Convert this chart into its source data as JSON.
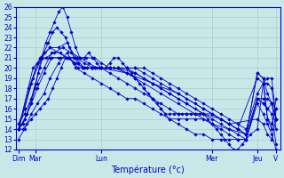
{
  "xlabel": "Température (°c)",
  "ylim": [
    12,
    26
  ],
  "yticks": [
    12,
    13,
    14,
    15,
    16,
    17,
    18,
    19,
    20,
    21,
    22,
    23,
    24,
    25,
    26
  ],
  "bg_color": "#c8e8e8",
  "grid_color": "#a0c8c8",
  "line_color": "#0000cc",
  "xlim": [
    0,
    310
  ],
  "day_tick_positions": [
    3,
    23,
    100,
    230,
    283,
    305
  ],
  "day_tick_labels": [
    "Dim",
    "Mar",
    "Lun",
    "Mer",
    "Jeu",
    "V"
  ],
  "series": [
    {
      "x": [
        3,
        8,
        13,
        18,
        22,
        26,
        30,
        35,
        40,
        45,
        50,
        55,
        60,
        65,
        70,
        75,
        80,
        85,
        90,
        95,
        100,
        105,
        110,
        115,
        120,
        125,
        130,
        135,
        140,
        145,
        150,
        155,
        160,
        165,
        170,
        175,
        180,
        185,
        190,
        195,
        200,
        205,
        210,
        215,
        220,
        225,
        230,
        235,
        240,
        245,
        250,
        255,
        260,
        265,
        270,
        275,
        283,
        290,
        295,
        300,
        305
      ],
      "y": [
        14.0,
        14.5,
        15.5,
        16.5,
        18.0,
        19.5,
        21.0,
        22.5,
        23.5,
        24.5,
        25.5,
        26.0,
        25.0,
        23.5,
        22.0,
        21.0,
        21.0,
        21.5,
        21.0,
        20.5,
        20.0,
        20.0,
        20.5,
        21.0,
        21.0,
        20.5,
        20.0,
        19.5,
        19.0,
        18.5,
        18.0,
        17.5,
        17.0,
        16.5,
        16.0,
        15.5,
        15.5,
        15.5,
        15.5,
        15.5,
        15.5,
        15.5,
        15.5,
        15.5,
        15.5,
        15.0,
        14.5,
        14.0,
        13.5,
        13.0,
        12.5,
        12.0,
        12.0,
        12.5,
        13.0,
        13.5,
        14.0,
        18.5,
        19.0,
        19.0,
        15.0
      ]
    },
    {
      "x": [
        3,
        10,
        18,
        25,
        35,
        45,
        55,
        65,
        75,
        85,
        95,
        100,
        110,
        120,
        130,
        140,
        150,
        160,
        170,
        180,
        190,
        200,
        210,
        220,
        230,
        240,
        250,
        260,
        270,
        283,
        290,
        295,
        300,
        305
      ],
      "y": [
        14.5,
        16.0,
        18.5,
        20.5,
        21.0,
        21.5,
        22.0,
        21.5,
        21.0,
        20.5,
        20.0,
        20.0,
        20.0,
        20.0,
        20.0,
        20.0,
        20.0,
        19.5,
        19.0,
        18.5,
        18.0,
        17.5,
        17.0,
        16.5,
        16.0,
        15.5,
        15.0,
        14.5,
        14.0,
        17.5,
        18.5,
        18.5,
        18.0,
        15.0
      ]
    },
    {
      "x": [
        3,
        8,
        13,
        18,
        23,
        28,
        33,
        38,
        43,
        48,
        53,
        58,
        63,
        68,
        73,
        78,
        83,
        88,
        93,
        98,
        100,
        110,
        120,
        130,
        140,
        150,
        160,
        170,
        180,
        190,
        200,
        210,
        220,
        230,
        240,
        250,
        260,
        270,
        283,
        290,
        295,
        300,
        305
      ],
      "y": [
        14.0,
        14.5,
        15.5,
        17.0,
        18.5,
        20.0,
        21.5,
        22.5,
        23.5,
        24.0,
        23.5,
        23.0,
        22.0,
        21.0,
        20.5,
        20.0,
        20.0,
        20.0,
        20.0,
        20.0,
        20.0,
        20.0,
        20.0,
        19.5,
        19.0,
        18.0,
        17.0,
        16.0,
        15.0,
        14.5,
        14.0,
        13.5,
        13.5,
        13.0,
        13.0,
        13.0,
        13.0,
        13.0,
        17.0,
        17.0,
        17.0,
        16.5,
        15.0
      ]
    },
    {
      "x": [
        3,
        10,
        18,
        25,
        33,
        40,
        50,
        60,
        70,
        80,
        90,
        100,
        110,
        120,
        130,
        140,
        150,
        160,
        170,
        180,
        190,
        200,
        210,
        220,
        230,
        240,
        250,
        260,
        270,
        283,
        290,
        295,
        300,
        305
      ],
      "y": [
        13.0,
        14.0,
        15.5,
        16.5,
        17.5,
        19.0,
        20.5,
        21.5,
        20.0,
        19.5,
        19.0,
        18.5,
        18.0,
        17.5,
        17.0,
        17.0,
        16.5,
        16.0,
        15.5,
        15.0,
        15.0,
        15.0,
        15.0,
        15.0,
        14.5,
        14.0,
        13.5,
        13.0,
        13.0,
        16.5,
        15.5,
        14.5,
        13.5,
        12.0
      ]
    },
    {
      "x": [
        3,
        10,
        18,
        25,
        33,
        42,
        52,
        62,
        72,
        82,
        92,
        100,
        110,
        120,
        130,
        140,
        150,
        160,
        170,
        180,
        190,
        200,
        210,
        220,
        230,
        240,
        250,
        260,
        270,
        283,
        290,
        295,
        300,
        305
      ],
      "y": [
        14.0,
        15.0,
        16.5,
        18.0,
        19.5,
        21.0,
        21.0,
        21.0,
        21.0,
        21.0,
        21.0,
        20.5,
        20.0,
        20.0,
        20.0,
        20.0,
        19.5,
        19.0,
        18.5,
        18.0,
        17.5,
        17.0,
        16.5,
        16.0,
        15.5,
        15.0,
        14.5,
        14.0,
        13.5,
        19.5,
        19.0,
        17.5,
        16.5,
        16.0
      ]
    },
    {
      "x": [
        3,
        10,
        18,
        25,
        33,
        42,
        52,
        60,
        70,
        80,
        90,
        100,
        110,
        120,
        130,
        140,
        150,
        160,
        170,
        180,
        190,
        200,
        210,
        220,
        230,
        240,
        250,
        260,
        270,
        283,
        290,
        295,
        300,
        305
      ],
      "y": [
        14.5,
        15.5,
        17.0,
        18.5,
        20.0,
        21.5,
        21.5,
        21.0,
        20.5,
        20.0,
        20.0,
        20.0,
        20.0,
        20.0,
        20.0,
        19.5,
        19.0,
        18.5,
        18.0,
        17.5,
        17.0,
        16.5,
        16.0,
        15.5,
        15.0,
        14.5,
        14.0,
        13.5,
        13.0,
        17.0,
        16.5,
        16.0,
        16.5,
        14.0
      ]
    },
    {
      "x": [
        3,
        8,
        13,
        18,
        23,
        28,
        33,
        38,
        43,
        48,
        53,
        58,
        63,
        68,
        73,
        78,
        83,
        88,
        93,
        98,
        100,
        110,
        120,
        130,
        140,
        150,
        160,
        170,
        180,
        190,
        200,
        210,
        220,
        230,
        240,
        250,
        260,
        270,
        283,
        290,
        295,
        300,
        305
      ],
      "y": [
        14.0,
        14.0,
        14.5,
        15.0,
        15.5,
        16.0,
        16.5,
        17.0,
        18.0,
        19.0,
        20.0,
        21.0,
        21.0,
        20.5,
        20.0,
        20.0,
        20.0,
        20.0,
        20.0,
        20.0,
        20.0,
        19.5,
        19.0,
        18.5,
        18.0,
        17.5,
        17.0,
        16.5,
        16.0,
        15.5,
        15.5,
        15.5,
        15.5,
        15.5,
        15.0,
        14.5,
        14.0,
        13.5,
        17.0,
        16.5,
        16.0,
        15.5,
        12.5
      ]
    },
    {
      "x": [
        3,
        10,
        20,
        30,
        40,
        50,
        60,
        70,
        80,
        90,
        100,
        115,
        130,
        150,
        170,
        190,
        210,
        230,
        250,
        270,
        283,
        290,
        295,
        300,
        305
      ],
      "y": [
        14.0,
        16.0,
        19.0,
        21.0,
        21.0,
        21.0,
        21.0,
        21.0,
        20.5,
        20.0,
        20.0,
        20.0,
        19.5,
        18.5,
        17.5,
        16.5,
        15.5,
        14.5,
        14.0,
        13.5,
        19.5,
        19.0,
        15.0,
        14.5,
        16.0
      ]
    },
    {
      "x": [
        3,
        15,
        28,
        40,
        50,
        60,
        70,
        80,
        90,
        100,
        130,
        160,
        190,
        220,
        250,
        283,
        290,
        295,
        300,
        305
      ],
      "y": [
        14.0,
        18.0,
        21.0,
        22.0,
        22.0,
        22.5,
        21.0,
        20.0,
        20.0,
        20.0,
        19.5,
        18.5,
        17.5,
        16.0,
        14.5,
        15.0,
        14.5,
        13.5,
        13.0,
        15.0
      ]
    },
    {
      "x": [
        3,
        20,
        40,
        60,
        80,
        100,
        120,
        140,
        160,
        180,
        200,
        220,
        240,
        260,
        283,
        290,
        295,
        300,
        305
      ],
      "y": [
        14.0,
        20.0,
        22.0,
        21.0,
        20.0,
        20.0,
        20.0,
        19.5,
        18.5,
        17.5,
        16.5,
        15.5,
        15.0,
        14.0,
        19.0,
        18.5,
        15.0,
        14.0,
        17.0
      ]
    }
  ]
}
